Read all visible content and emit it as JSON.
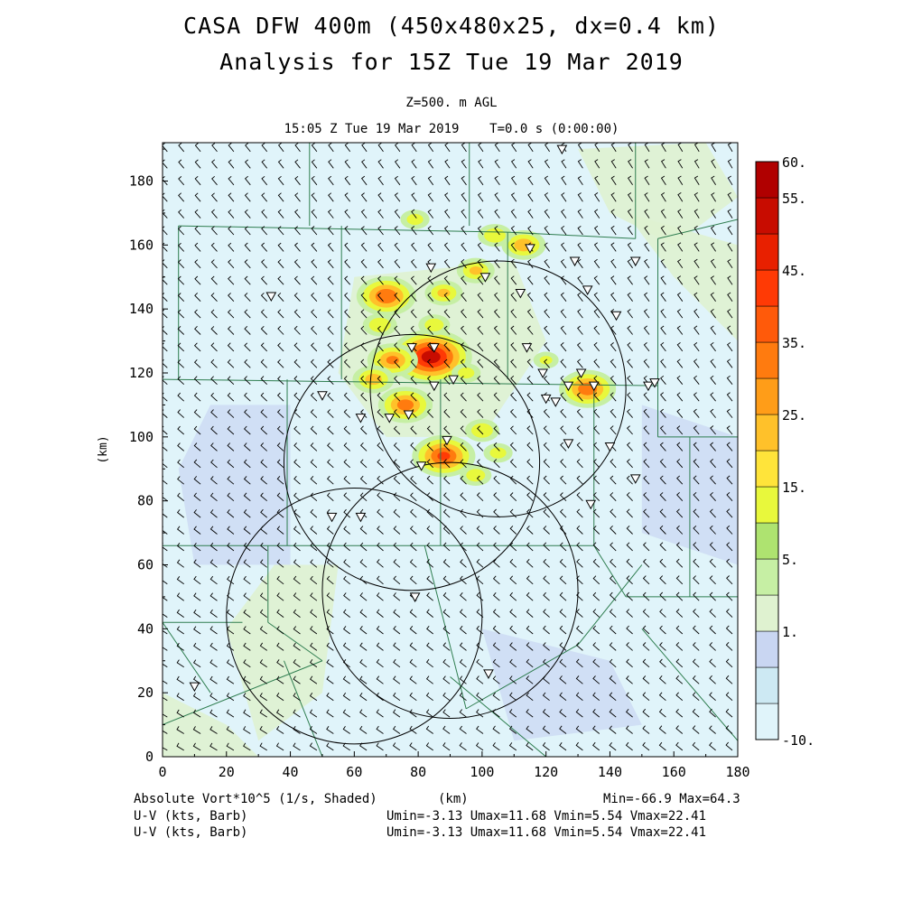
{
  "header": {
    "title_line1": "CASA DFW 400m (450x480x25, dx=0.4 km)",
    "title_line2": "Analysis for 15Z Tue 19 Mar 2019",
    "level": "Z=500. m AGL",
    "valid_time": "15:05 Z Tue 19 Mar 2019    T=0.0 s (0:00:00)"
  },
  "footer": {
    "field_label": "Absolute Vort*10^5 (1/s, Shaded)",
    "xaxis_unit": "(km)",
    "minmax": "Min=-66.9 Max=64.3",
    "barb1_label": "U-V (kts, Barb)",
    "barb1_stats": "Umin=-3.13 Umax=11.68 Vmin=5.54 Vmax=22.41",
    "barb2_label": "U-V (kts, Barb)",
    "barb2_stats": "Umin=-3.13 Umax=11.68 Vmin=5.54 Vmax=22.41"
  },
  "colors": {
    "frame": "#000000",
    "county_lines": "#2e7d4f",
    "radar_rings": "#000000",
    "barbs": "#000000"
  },
  "chart_data": {
    "type": "heatmap",
    "title": "CASA DFW 400m (450x480x25, dx=0.4 km)",
    "xlabel": "(km)",
    "ylabel": "(km)",
    "xlim": [
      0,
      180
    ],
    "ylim": [
      0,
      192
    ],
    "xticks": [
      0,
      20,
      40,
      60,
      80,
      100,
      120,
      140,
      160,
      180
    ],
    "yticks": [
      0,
      20,
      40,
      60,
      80,
      100,
      120,
      140,
      160,
      180
    ],
    "colorbar": {
      "labels": [
        "60.",
        "55.",
        "45.",
        "35.",
        "25.",
        "15.",
        "5.",
        "1.",
        "-10."
      ],
      "label_values": [
        60,
        55,
        45,
        35,
        25,
        15,
        5,
        1,
        -10
      ],
      "bin_colors": [
        "#e0f4fa",
        "#cde9f3",
        "#c9d6f2",
        "#dff2d0",
        "#c6efa4",
        "#aee370",
        "#e8f83c",
        "#ffe43a",
        "#ffc12a",
        "#ff9d18",
        "#ff7b0f",
        "#ff5a0a",
        "#ff3a05",
        "#e82000",
        "#c80c00",
        "#b00000"
      ]
    },
    "radar_rings": [
      {
        "center": [
          60,
          44
        ],
        "radius_km": 40
      },
      {
        "center": [
          90,
          52
        ],
        "radius_km": 40
      },
      {
        "center": [
          78,
          92
        ],
        "radius_km": 40
      },
      {
        "center": [
          105,
          115
        ],
        "radius_km": 40
      }
    ],
    "station_markers": [
      [
        125,
        190
      ],
      [
        115,
        159
      ],
      [
        129,
        155
      ],
      [
        148,
        155
      ],
      [
        133,
        146
      ],
      [
        142,
        138
      ],
      [
        84,
        153
      ],
      [
        101,
        150
      ],
      [
        112,
        145
      ],
      [
        34,
        144
      ],
      [
        78,
        128
      ],
      [
        85,
        128
      ],
      [
        114,
        128
      ],
      [
        119,
        120
      ],
      [
        131,
        120
      ],
      [
        127,
        116
      ],
      [
        135,
        116
      ],
      [
        152,
        116
      ],
      [
        154,
        117
      ],
      [
        120,
        112
      ],
      [
        123,
        111
      ],
      [
        85,
        116
      ],
      [
        91,
        118
      ],
      [
        62,
        106
      ],
      [
        71,
        106
      ],
      [
        77,
        107
      ],
      [
        50,
        113
      ],
      [
        127,
        98
      ],
      [
        140,
        97
      ],
      [
        148,
        87
      ],
      [
        89,
        99
      ],
      [
        81,
        91
      ],
      [
        134,
        79
      ],
      [
        53,
        75
      ],
      [
        62,
        75
      ],
      [
        79,
        50
      ],
      [
        102,
        26
      ],
      [
        10,
        22
      ]
    ],
    "vorticity_maxima": [
      [
        84,
        125,
        60
      ],
      [
        88,
        94,
        45
      ],
      [
        70,
        144,
        42
      ],
      [
        76,
        110,
        38
      ],
      [
        133,
        115,
        40
      ],
      [
        72,
        124,
        35
      ],
      [
        66,
        118,
        28
      ],
      [
        98,
        152,
        25
      ],
      [
        88,
        145,
        25
      ],
      [
        113,
        160,
        30
      ],
      [
        104,
        163,
        22
      ],
      [
        79,
        168,
        18
      ],
      [
        100,
        102,
        22
      ],
      [
        98,
        88,
        20
      ],
      [
        105,
        95,
        18
      ],
      [
        68,
        135,
        22
      ],
      [
        95,
        120,
        18
      ],
      [
        120,
        124,
        15
      ],
      [
        85,
        135,
        20
      ]
    ],
    "barb_field": {
      "u_min": -3.13,
      "u_max": 11.68,
      "v_min": 5.54,
      "v_max": 22.41,
      "units": "kts"
    }
  }
}
